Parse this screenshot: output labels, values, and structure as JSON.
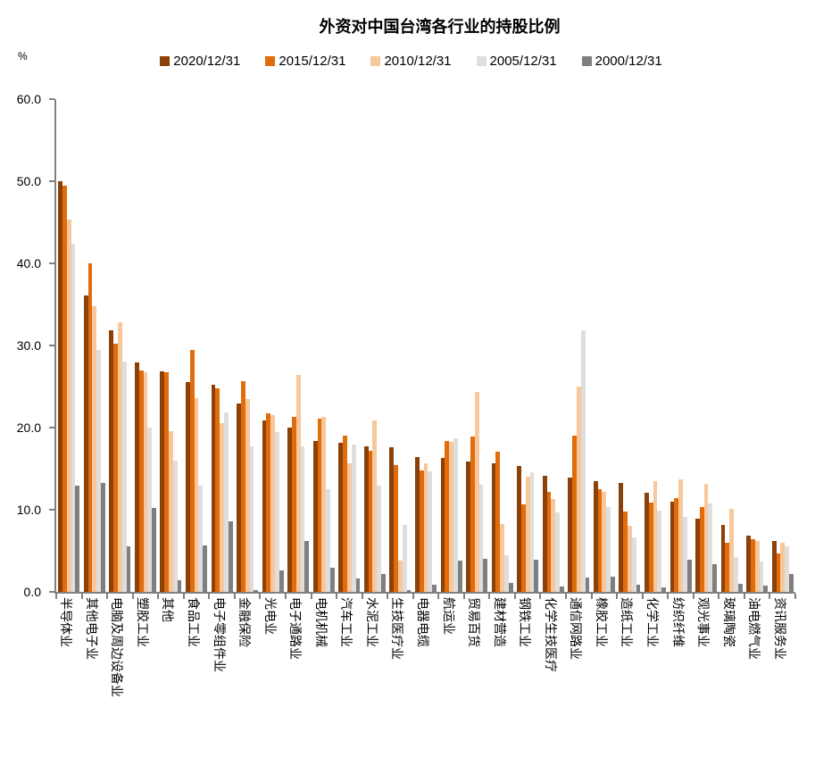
{
  "chart_data": {
    "type": "bar",
    "title": "外资对中国台湾各行业的持股比例",
    "unit": "%",
    "ylim": [
      0,
      60
    ],
    "yticks": [
      {
        "value": 0,
        "label": "0.0"
      },
      {
        "value": 10,
        "label": "10.0"
      },
      {
        "value": 20,
        "label": "20.0"
      },
      {
        "value": 30,
        "label": "30.0"
      },
      {
        "value": 40,
        "label": "40.0"
      },
      {
        "value": 50,
        "label": "50.0"
      },
      {
        "value": 60,
        "label": "60.0"
      }
    ],
    "grid": false,
    "legend_position": "top",
    "categories": [
      "半导体业",
      "其他电子业",
      "电脑及周边设备业",
      "塑胶工业",
      "其他",
      "食品工业",
      "电子零组件业",
      "金融保险",
      "光电业",
      "电子通路业",
      "电机机械",
      "汽车工业",
      "水泥工业",
      "生技医疗业",
      "电器电缆",
      "航运业",
      "贸易百货",
      "建材营造",
      "钢铁工业",
      "化学生技医疗",
      "通信网路业",
      "橡胶工业",
      "造纸工业",
      "化学工业",
      "纺织纤维",
      "观光事业",
      "玻璃陶瓷",
      "油电燃气业",
      "资讯服务业"
    ],
    "series": [
      {
        "name": "2020/12/31",
        "color": "#8C4108",
        "values": [
          50.0,
          36.1,
          31.9,
          27.9,
          26.9,
          25.5,
          25.2,
          22.9,
          20.9,
          20.0,
          18.4,
          18.2,
          17.7,
          17.6,
          16.4,
          16.3,
          15.9,
          15.6,
          15.3,
          14.1,
          13.9,
          13.5,
          13.3,
          12.1,
          11.0,
          8.9,
          8.2,
          6.9,
          6.2
        ]
      },
      {
        "name": "2015/12/31",
        "color": "#E16C0B",
        "values": [
          49.5,
          40.0,
          30.2,
          27.0,
          26.7,
          29.5,
          24.8,
          25.7,
          21.7,
          21.3,
          21.1,
          19.0,
          17.2,
          15.4,
          14.8,
          18.4,
          18.9,
          17.1,
          10.6,
          12.2,
          19.0,
          12.5,
          9.8,
          10.9,
          11.4,
          10.3,
          6.0,
          6.4,
          4.7
        ]
      },
      {
        "name": "2010/12/31",
        "color": "#F8C79B",
        "values": [
          45.3,
          34.8,
          32.8,
          26.7,
          19.6,
          23.6,
          20.5,
          23.5,
          21.5,
          26.4,
          21.3,
          15.6,
          20.9,
          3.8,
          15.7,
          18.3,
          24.3,
          8.3,
          14.0,
          11.3,
          25.0,
          12.2,
          8.0,
          13.5,
          13.7,
          13.1,
          10.1,
          6.2,
          6.0
        ]
      },
      {
        "name": "2005/12/31",
        "color": "#DEDEDE",
        "values": [
          42.4,
          29.5,
          28.0,
          20.0,
          16.0,
          12.9,
          21.8,
          17.7,
          19.5,
          17.7,
          12.5,
          17.9,
          12.9,
          8.2,
          14.7,
          18.7,
          13.0,
          4.5,
          14.6,
          9.7,
          31.9,
          10.3,
          6.6,
          9.9,
          9.1,
          10.8,
          4.2,
          3.7,
          5.5
        ]
      },
      {
        "name": "2000/12/31",
        "color": "#7F7F7F",
        "values": [
          12.9,
          13.3,
          5.5,
          10.2,
          1.4,
          5.7,
          8.6,
          0.2,
          2.6,
          6.2,
          2.9,
          1.6,
          2.2,
          0.2,
          0.9,
          3.8,
          4.0,
          1.1,
          3.9,
          0.7,
          1.7,
          1.8,
          0.9,
          0.5,
          3.9,
          3.4,
          1.0,
          0.8,
          2.2
        ]
      }
    ]
  }
}
